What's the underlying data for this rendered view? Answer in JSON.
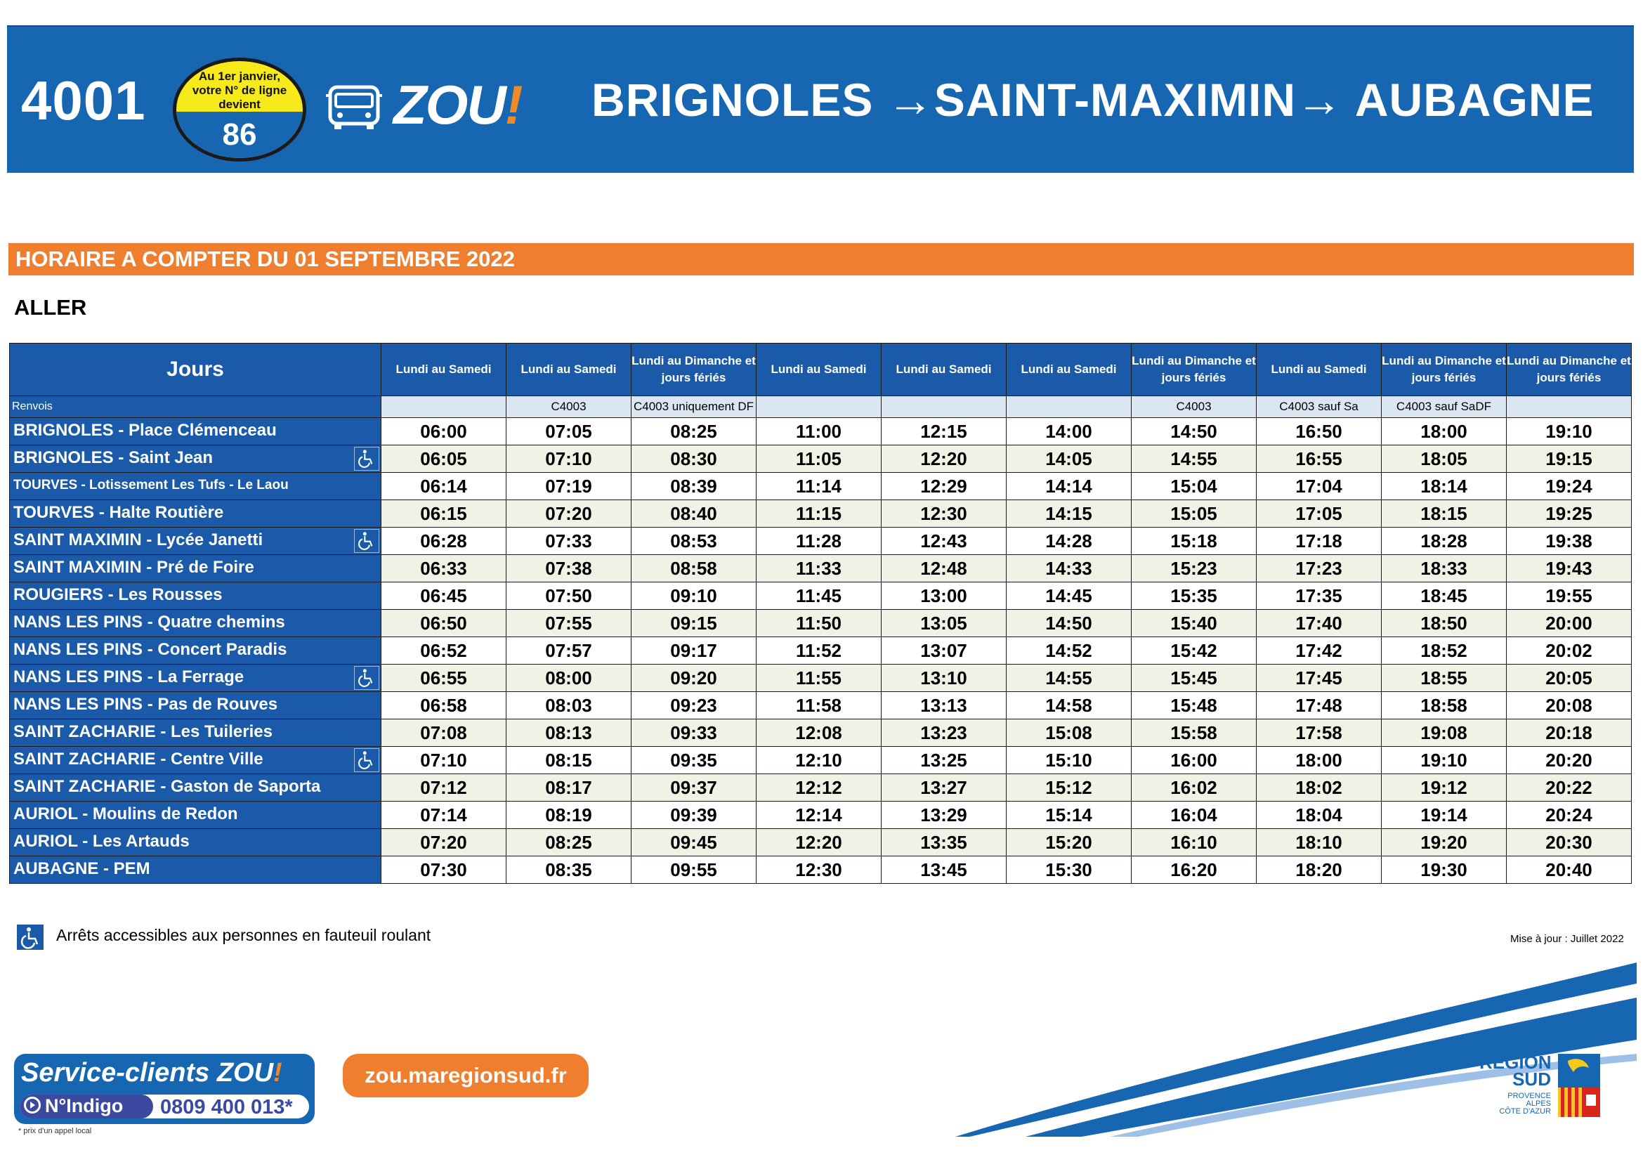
{
  "header": {
    "line_number": "4001",
    "badge_text": [
      "Au 1er janvier,",
      "votre N° de ligne",
      "devient"
    ],
    "badge_new_number": "86",
    "brand": "ZOU",
    "brand_bang": "!",
    "route_title": "BRIGNOLES →SAINT-MAXIMIN→ AUBAGNE"
  },
  "schedule_start": "HORAIRE A COMPTER DU  01 SEPTEMBRE 2022",
  "direction": "ALLER",
  "table": {
    "jours_label": "Jours",
    "day_columns": [
      "Lundi au Samedi",
      "Lundi au Samedi",
      "Lundi au Dimanche et jours fériés",
      "Lundi au Samedi",
      "Lundi au Samedi",
      "Lundi au Samedi",
      "Lundi au Dimanche et jours fériés",
      "Lundi au Samedi",
      "Lundi au Dimanche et jours fériés",
      "Lundi au Dimanche et jours fériés"
    ],
    "renvois_label": "Renvois",
    "renvois": [
      "",
      "C4003",
      "C4003 uniquement DF",
      "",
      "",
      "",
      "C4003",
      "C4003 sauf Sa",
      "C4003 sauf SaDF",
      ""
    ],
    "stops": [
      {
        "name": "BRIGNOLES - Place Clémenceau",
        "accessible": false,
        "times": [
          "06:00",
          "07:05",
          "08:25",
          "11:00",
          "12:15",
          "14:00",
          "14:50",
          "16:50",
          "18:00",
          "19:10"
        ]
      },
      {
        "name": "BRIGNOLES - Saint Jean",
        "accessible": true,
        "times": [
          "06:05",
          "07:10",
          "08:30",
          "11:05",
          "12:20",
          "14:05",
          "14:55",
          "16:55",
          "18:05",
          "19:15"
        ]
      },
      {
        "name": "TOURVES - Lotissement Les Tufs - Le Laou",
        "accessible": false,
        "small": true,
        "times": [
          "06:14",
          "07:19",
          "08:39",
          "11:14",
          "12:29",
          "14:14",
          "15:04",
          "17:04",
          "18:14",
          "19:24"
        ]
      },
      {
        "name": "TOURVES - Halte Routière",
        "accessible": false,
        "times": [
          "06:15",
          "07:20",
          "08:40",
          "11:15",
          "12:30",
          "14:15",
          "15:05",
          "17:05",
          "18:15",
          "19:25"
        ]
      },
      {
        "name": "SAINT MAXIMIN - Lycée Janetti",
        "accessible": true,
        "times": [
          "06:28",
          "07:33",
          "08:53",
          "11:28",
          "12:43",
          "14:28",
          "15:18",
          "17:18",
          "18:28",
          "19:38"
        ]
      },
      {
        "name": "SAINT MAXIMIN - Pré de Foire",
        "accessible": false,
        "times": [
          "06:33",
          "07:38",
          "08:58",
          "11:33",
          "12:48",
          "14:33",
          "15:23",
          "17:23",
          "18:33",
          "19:43"
        ]
      },
      {
        "name": "ROUGIERS - Les Rousses",
        "accessible": false,
        "times": [
          "06:45",
          "07:50",
          "09:10",
          "11:45",
          "13:00",
          "14:45",
          "15:35",
          "17:35",
          "18:45",
          "19:55"
        ]
      },
      {
        "name": "NANS LES PINS - Quatre chemins",
        "accessible": false,
        "times": [
          "06:50",
          "07:55",
          "09:15",
          "11:50",
          "13:05",
          "14:50",
          "15:40",
          "17:40",
          "18:50",
          "20:00"
        ]
      },
      {
        "name": "NANS LES PINS - Concert Paradis",
        "accessible": false,
        "times": [
          "06:52",
          "07:57",
          "09:17",
          "11:52",
          "13:07",
          "14:52",
          "15:42",
          "17:42",
          "18:52",
          "20:02"
        ]
      },
      {
        "name": "NANS LES PINS - La Ferrage",
        "accessible": true,
        "times": [
          "06:55",
          "08:00",
          "09:20",
          "11:55",
          "13:10",
          "14:55",
          "15:45",
          "17:45",
          "18:55",
          "20:05"
        ]
      },
      {
        "name": "NANS LES PINS - Pas de Rouves",
        "accessible": false,
        "times": [
          "06:58",
          "08:03",
          "09:23",
          "11:58",
          "13:13",
          "14:58",
          "15:48",
          "17:48",
          "18:58",
          "20:08"
        ]
      },
      {
        "name": "SAINT ZACHARIE - Les Tuileries",
        "accessible": false,
        "times": [
          "07:08",
          "08:13",
          "09:33",
          "12:08",
          "13:23",
          "15:08",
          "15:58",
          "17:58",
          "19:08",
          "20:18"
        ]
      },
      {
        "name": "SAINT ZACHARIE - Centre Ville",
        "accessible": true,
        "times": [
          "07:10",
          "08:15",
          "09:35",
          "12:10",
          "13:25",
          "15:10",
          "16:00",
          "18:00",
          "19:10",
          "20:20"
        ]
      },
      {
        "name": "SAINT ZACHARIE - Gaston de Saporta",
        "accessible": false,
        "times": [
          "07:12",
          "08:17",
          "09:37",
          "12:12",
          "13:27",
          "15:12",
          "16:02",
          "18:02",
          "19:12",
          "20:22"
        ]
      },
      {
        "name": "AURIOL - Moulins de Redon",
        "accessible": false,
        "times": [
          "07:14",
          "08:19",
          "09:39",
          "12:14",
          "13:29",
          "15:14",
          "16:04",
          "18:04",
          "19:14",
          "20:24"
        ]
      },
      {
        "name": "AURIOL - Les Artauds",
        "accessible": false,
        "times": [
          "07:20",
          "08:25",
          "09:45",
          "12:20",
          "13:35",
          "15:20",
          "16:10",
          "18:10",
          "19:20",
          "20:30"
        ]
      },
      {
        "name": "AUBAGNE - PEM",
        "accessible": false,
        "times": [
          "07:30",
          "08:35",
          "09:55",
          "12:30",
          "13:45",
          "15:30",
          "16:20",
          "18:20",
          "19:30",
          "20:40"
        ]
      }
    ]
  },
  "legend": {
    "icon": "wheelchair-icon",
    "text": "Arrêts accessibles aux personnes en fauteuil roulant"
  },
  "update_note": "Mise à jour : Juillet 2022",
  "footer": {
    "service_label": "Service-clients ZOU",
    "service_bang": "!",
    "indigo_label": "N°Indigo",
    "phone_number": "0809 400 013*",
    "phone_note": "* prix d'un appel local",
    "website": "zou.maregionsud.fr",
    "region_name": [
      "RÉGION",
      "SUD"
    ],
    "region_sub": [
      "PROVENCE",
      "ALPES",
      "CÔTE D'AZUR"
    ]
  },
  "colors": {
    "brand_blue": "#1766b2",
    "table_blue": "#1a5aa8",
    "orange": "#ef7e2f",
    "badge_yellow": "#f7ea1c",
    "indigo": "#3b4aa0"
  }
}
